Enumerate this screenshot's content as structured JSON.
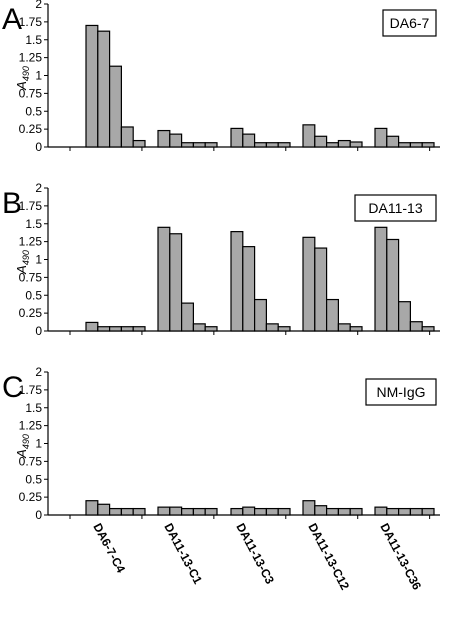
{
  "chart_data": [
    {
      "type": "bar",
      "panel_label": "A",
      "legend": "DA6-7",
      "ylabel": "A",
      "ylabel_sub": "490",
      "ylim": [
        0,
        2
      ],
      "yticks": [
        "0",
        "0.25",
        "0.5",
        "0.75",
        "1",
        "1.25",
        "1.5",
        "1.75",
        "2"
      ],
      "categories": [
        "DA6-7-C4",
        "DA11-13-C1",
        "DA11-13-C3",
        "DA11-13-C12",
        "DA11-13-C36"
      ],
      "values": [
        [
          1.7,
          1.62,
          1.13,
          0.28,
          0.09
        ],
        [
          0.23,
          0.18,
          0.06,
          0.06,
          0.06
        ],
        [
          0.26,
          0.18,
          0.06,
          0.06,
          0.06
        ],
        [
          0.31,
          0.15,
          0.06,
          0.09,
          0.07
        ],
        [
          0.26,
          0.15,
          0.06,
          0.06,
          0.06
        ]
      ],
      "grid": false,
      "legend_position": "top-right"
    },
    {
      "type": "bar",
      "panel_label": "B",
      "legend": "DA11-13",
      "ylabel": "A",
      "ylabel_sub": "490",
      "ylim": [
        0,
        2
      ],
      "yticks": [
        "0",
        "0.25",
        "0.5",
        "0.75",
        "1",
        "1.25",
        "1.5",
        "1.75",
        "2"
      ],
      "categories": [
        "DA6-7-C4",
        "DA11-13-C1",
        "DA11-13-C3",
        "DA11-13-C12",
        "DA11-13-C36"
      ],
      "values": [
        [
          0.12,
          0.06,
          0.06,
          0.06,
          0.06
        ],
        [
          1.45,
          1.36,
          0.39,
          0.1,
          0.06
        ],
        [
          1.39,
          1.18,
          0.44,
          0.1,
          0.06
        ],
        [
          1.31,
          1.16,
          0.44,
          0.1,
          0.06
        ],
        [
          1.45,
          1.28,
          0.41,
          0.13,
          0.06
        ]
      ],
      "grid": false,
      "legend_position": "top-right"
    },
    {
      "type": "bar",
      "panel_label": "C",
      "legend": "NM-IgG",
      "ylabel": "A",
      "ylabel_sub": "490",
      "ylim": [
        0,
        2
      ],
      "yticks": [
        "0",
        "0.25",
        "0.5",
        "0.75",
        "1",
        "1.25",
        "1.5",
        "1.75",
        "2"
      ],
      "categories": [
        "DA6-7-C4",
        "DA11-13-C1",
        "DA11-13-C3",
        "DA11-13-C12",
        "DA11-13-C36"
      ],
      "values": [
        [
          0.2,
          0.15,
          0.09,
          0.09,
          0.09
        ],
        [
          0.11,
          0.11,
          0.09,
          0.09,
          0.09
        ],
        [
          0.09,
          0.11,
          0.09,
          0.09,
          0.09
        ],
        [
          0.2,
          0.13,
          0.09,
          0.09,
          0.09
        ],
        [
          0.11,
          0.09,
          0.09,
          0.09,
          0.09
        ]
      ],
      "grid": false,
      "legend_position": "top-right"
    }
  ]
}
